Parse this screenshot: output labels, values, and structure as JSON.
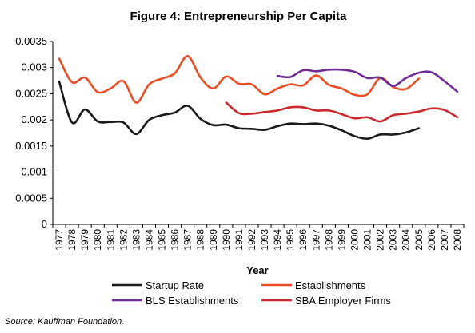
{
  "chart_data": {
    "type": "line",
    "title": "Figure 4: Entrepreneurship Per Capita",
    "xlabel": "Year",
    "ylabel": "",
    "ylim": [
      0,
      0.0035
    ],
    "yticks": [
      "0",
      "0.0005",
      "0.001",
      "0.0015",
      "0.002",
      "0.0025",
      "0.003",
      "0.0035"
    ],
    "x": [
      1977,
      1978,
      1979,
      1980,
      1981,
      1982,
      1983,
      1984,
      1985,
      1986,
      1987,
      1988,
      1989,
      1990,
      1991,
      1992,
      1993,
      1994,
      1995,
      1996,
      1997,
      1998,
      1999,
      2000,
      2001,
      2002,
      2003,
      2004,
      2005,
      2006,
      2007,
      2008
    ],
    "grid": false,
    "legend_position": "bottom",
    "series": [
      {
        "name": "Startup Rate",
        "color": "#1a1a1a",
        "values": [
          0.00273,
          0.00195,
          0.0022,
          0.00197,
          0.00196,
          0.00195,
          0.00173,
          0.002,
          0.00209,
          0.00214,
          0.00227,
          0.00202,
          0.0019,
          0.00191,
          0.00184,
          0.00183,
          0.00181,
          0.00188,
          0.00193,
          0.00192,
          0.00193,
          0.00189,
          0.0018,
          0.00169,
          0.00164,
          0.00172,
          0.00172,
          0.00176,
          0.00184,
          null,
          null,
          null
        ]
      },
      {
        "name": "Establishments",
        "color": "#e94e24",
        "values": [
          0.00317,
          0.00272,
          0.00281,
          0.00253,
          0.0026,
          0.00274,
          0.00233,
          0.00268,
          0.00279,
          0.00289,
          0.00322,
          0.00281,
          0.0026,
          0.00283,
          0.00269,
          0.00268,
          0.00249,
          0.0026,
          0.00268,
          0.00266,
          0.00285,
          0.00267,
          0.0026,
          0.00248,
          0.00249,
          0.0028,
          0.00263,
          0.00259,
          0.00279,
          null,
          null,
          null
        ]
      },
      {
        "name": "BLS Establishments",
        "color": "#6f2c91",
        "values": [
          null,
          null,
          null,
          null,
          null,
          null,
          null,
          null,
          null,
          null,
          null,
          null,
          null,
          null,
          null,
          null,
          null,
          0.00284,
          0.00282,
          0.00295,
          0.00293,
          0.00296,
          0.00296,
          0.00292,
          0.0028,
          0.00281,
          0.00265,
          0.0028,
          0.0029,
          0.00291,
          0.00274,
          0.00254
        ]
      },
      {
        "name": "SBA Employer Firms",
        "color": "#c8282e",
        "values": [
          null,
          null,
          null,
          null,
          null,
          null,
          null,
          null,
          null,
          null,
          null,
          null,
          null,
          0.00233,
          0.00213,
          0.00212,
          0.00215,
          0.00218,
          0.00224,
          0.00224,
          0.00218,
          0.00218,
          0.00211,
          0.00203,
          0.00205,
          0.00197,
          0.00209,
          0.00212,
          0.00216,
          0.00222,
          0.00219,
          0.00205
        ]
      }
    ],
    "source": "Source: Kauffman Foundation."
  }
}
